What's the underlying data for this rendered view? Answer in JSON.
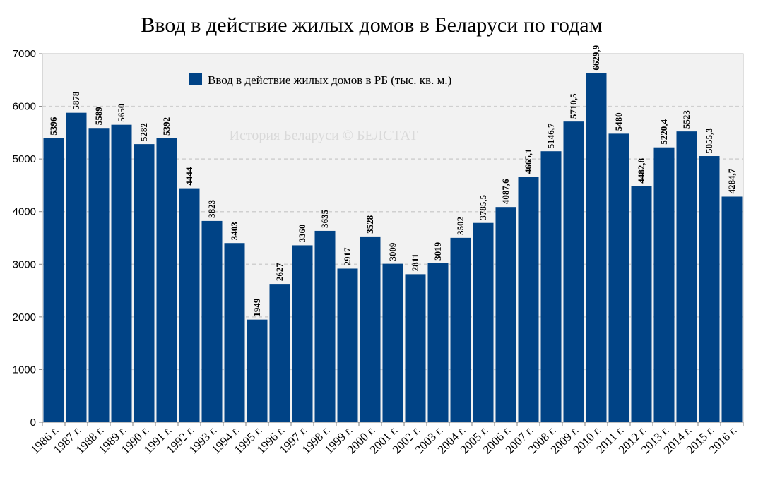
{
  "chart_data": {
    "type": "bar",
    "title": "Ввод в действие жилых домов в Беларуси по годам",
    "watermark": "История Беларуси © БЕЛСТАТ",
    "ylim": [
      0,
      7000
    ],
    "yticks": [
      "0",
      "1000",
      "2000",
      "3000",
      "4000",
      "5000",
      "6000",
      "7000"
    ],
    "grid": true,
    "legend_position": "top-left",
    "colors": {
      "bar": "#004386",
      "plot_bg": "#f2f2f2",
      "grid": "#d0d0d0"
    },
    "categories": [
      "1986 г.",
      "1987 г.",
      "1988 г.",
      "1989 г.",
      "1990 г.",
      "1991 г.",
      "1992 г.",
      "1993 г.",
      "1994 г.",
      "1995 г.",
      "1996 г.",
      "1997 г.",
      "1998 г.",
      "1999 г.",
      "2000 г.",
      "2001 г.",
      "2002 г.",
      "2003 г.",
      "2004 г.",
      "2005 г.",
      "2006 г.",
      "2007 г.",
      "2008 г.",
      "2009 г.",
      "2010 г.",
      "2011 г.",
      "2012 г.",
      "2013 г.",
      "2014 г.",
      "2015 г.",
      "2016 г."
    ],
    "series": [
      {
        "name": "Ввод в действие жилых домов в РБ (тыс. кв. м.)",
        "values": [
          5396,
          5878,
          5589,
          5650,
          5282,
          5392,
          4444,
          3823,
          3403,
          1949,
          2627,
          3360,
          3635,
          2917,
          3528,
          3009,
          2811,
          3019,
          3502,
          3785.5,
          4087.6,
          4665.1,
          5146.7,
          5710.5,
          6629.9,
          5480,
          4482.8,
          5220.4,
          5523,
          5055.3,
          4284.7
        ],
        "labels": [
          "5396",
          "5878",
          "5589",
          "5650",
          "5282",
          "5392",
          "4444",
          "3823",
          "3403",
          "1949",
          "2627",
          "3360",
          "3635",
          "2917",
          "3528",
          "3009",
          "2811",
          "3019",
          "3502",
          "3785,5",
          "4087,6",
          "4665,1",
          "5146,7",
          "5710,5",
          "6629,9",
          "5480",
          "4482,8",
          "5220,4",
          "5523",
          "5055,3",
          "4284,7"
        ]
      }
    ]
  }
}
